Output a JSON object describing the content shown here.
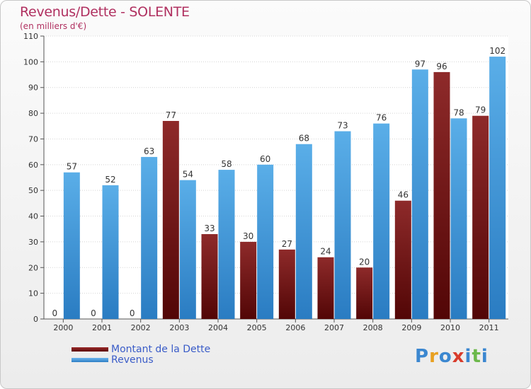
{
  "chart_data": {
    "type": "bar",
    "title": "Revenus/Dette - SOLENTE",
    "subtitle": "(en milliers d'€)",
    "xlabel": "",
    "ylabel": "",
    "ylim": [
      0,
      110
    ],
    "yticks": [
      0,
      10,
      20,
      30,
      40,
      50,
      60,
      70,
      80,
      90,
      100,
      110
    ],
    "grid": true,
    "categories": [
      "2000",
      "2001",
      "2002",
      "2003",
      "2004",
      "2005",
      "2006",
      "2007",
      "2008",
      "2009",
      "2010",
      "2011"
    ],
    "series": [
      {
        "name": "Montant de la Dette",
        "color": "#7a1818",
        "values": [
          0,
          0,
          0,
          77,
          33,
          30,
          27,
          24,
          20,
          46,
          96,
          79
        ]
      },
      {
        "name": "Revenus",
        "color": "#4d9fe0",
        "values": [
          57,
          52,
          63,
          54,
          58,
          60,
          68,
          73,
          76,
          97,
          78,
          102
        ]
      }
    ],
    "legend_position": "bottom-left"
  },
  "logo": {
    "letters": [
      "P",
      "r",
      "o",
      "x",
      "i",
      "t",
      "i"
    ],
    "colors": [
      "#3b87d0",
      "#e8a020",
      "#3b87d0",
      "#d83c2c",
      "#3b87d0",
      "#6cb84a",
      "#3b87d0"
    ]
  }
}
